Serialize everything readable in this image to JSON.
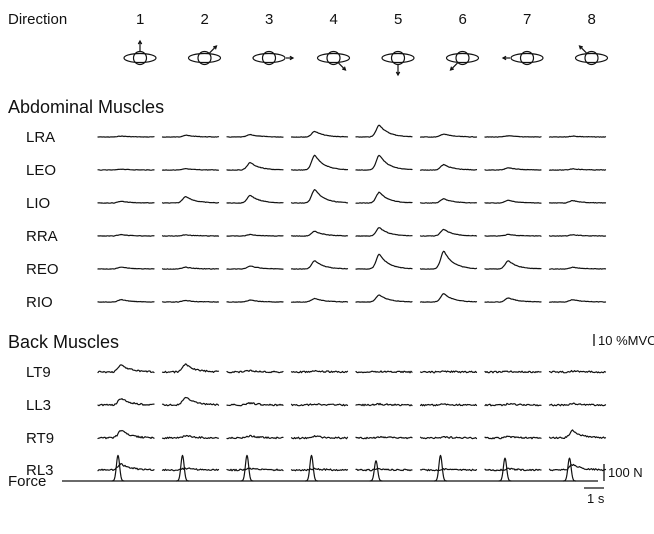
{
  "header": {
    "direction_label": "Direction",
    "directions": [
      {
        "label": "1",
        "arrow_icon": "arrow-up-icon"
      },
      {
        "label": "2",
        "arrow_icon": "arrow-up-right-icon"
      },
      {
        "label": "3",
        "arrow_icon": "arrow-right-icon"
      },
      {
        "label": "4",
        "arrow_icon": "arrow-down-right-icon"
      },
      {
        "label": "5",
        "arrow_icon": "arrow-down-icon"
      },
      {
        "label": "6",
        "arrow_icon": "arrow-down-left-icon"
      },
      {
        "label": "7",
        "arrow_icon": "arrow-left-icon"
      },
      {
        "label": "8",
        "arrow_icon": "arrow-up-left-icon"
      }
    ]
  },
  "sections": [
    {
      "title": "Abdominal Muscles",
      "rows": [
        {
          "label": "LRA",
          "peaks": [
            0.3,
            0.6,
            0.8,
            1.9,
            4.0,
            1.0,
            0.4,
            0.3
          ],
          "type": "smooth"
        },
        {
          "label": "LEO",
          "peaks": [
            0.3,
            0.4,
            2.5,
            5.0,
            5.0,
            1.8,
            0.8,
            0.4
          ],
          "type": "smooth"
        },
        {
          "label": "LIO",
          "peaks": [
            0.6,
            2.2,
            2.6,
            4.5,
            3.6,
            1.4,
            0.9,
            0.8
          ],
          "type": "smooth"
        },
        {
          "label": "RRA",
          "peaks": [
            0.5,
            0.4,
            0.5,
            1.6,
            2.8,
            2.2,
            0.5,
            0.4
          ],
          "type": "smooth"
        },
        {
          "label": "REO",
          "peaks": [
            0.7,
            0.6,
            1.0,
            2.8,
            5.0,
            6.0,
            2.8,
            0.6
          ],
          "type": "smooth"
        },
        {
          "label": "RIO",
          "peaks": [
            0.8,
            0.5,
            0.6,
            1.2,
            2.4,
            2.8,
            1.4,
            0.8
          ],
          "type": "smooth"
        }
      ]
    },
    {
      "title": "Back Muscles",
      "rows": [
        {
          "label": "LT9",
          "peaks": [
            2.4,
            2.6,
            0.5,
            0.3,
            0.2,
            0.2,
            0.2,
            0.3
          ],
          "type": "noisy"
        },
        {
          "label": "LL3",
          "peaks": [
            2.2,
            2.6,
            0.6,
            0.4,
            0.3,
            0.3,
            0.3,
            0.4
          ],
          "type": "noisy"
        },
        {
          "label": "RT9",
          "peaks": [
            2.5,
            0.8,
            0.7,
            0.6,
            0.4,
            0.4,
            0.5,
            2.5
          ],
          "type": "noisy"
        },
        {
          "label": "RL3",
          "peaks": [
            2.0,
            0.6,
            0.5,
            0.4,
            0.3,
            0.3,
            0.4,
            1.8
          ],
          "type": "noisy"
        }
      ]
    }
  ],
  "force": {
    "label": "Force",
    "peaks": [
      19,
      19,
      19,
      19,
      15,
      19,
      17,
      17
    ]
  },
  "scale_bars": {
    "emg": "10 %MVC",
    "force": "100 N",
    "time": "1 s"
  }
}
